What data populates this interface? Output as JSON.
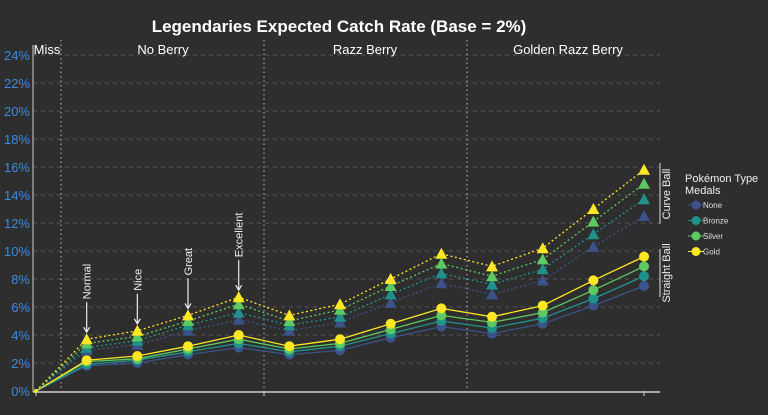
{
  "chart_data": {
    "type": "line",
    "title": "Legendaries Expected Catch Rate (Base = 2%)",
    "xlabel": "",
    "ylabel": "",
    "ylim": [
      0,
      24
    ],
    "yticks": [
      "0%",
      "2%",
      "4%",
      "6%",
      "8%",
      "10%",
      "12%",
      "14%",
      "16%",
      "18%",
      "20%",
      "22%",
      "24%"
    ],
    "grid": true,
    "sections": [
      "Miss",
      "No Berry",
      "Razz Berry",
      "Golden Razz Berry"
    ],
    "throw_annotations": [
      "Normal",
      "Nice",
      "Great",
      "Excellent"
    ],
    "ball_labels": {
      "curve": "Curve Ball",
      "straight": "Straight Ball"
    },
    "legend": {
      "title": "Pokémon Type Medals",
      "placement": "right",
      "entries": [
        {
          "name": "None",
          "color": "#3b528b"
        },
        {
          "name": "Bronze",
          "color": "#21918c"
        },
        {
          "name": "Silver",
          "color": "#5ec962"
        },
        {
          "name": "Gold",
          "color": "#fde725"
        }
      ]
    },
    "x": [
      "Miss",
      "No Berry Normal",
      "No Berry Nice",
      "No Berry Great",
      "No Berry Excellent",
      "Razz Berry Normal",
      "Razz Berry Nice",
      "Razz Berry Great",
      "Razz Berry Excellent",
      "Golden Razz Berry Normal",
      "Golden Razz Berry Nice",
      "Golden Razz Berry Great",
      "Golden Razz Berry Excellent"
    ],
    "series": [
      {
        "medal": "None",
        "ball": "Straight Ball",
        "values": [
          0,
          1.8,
          2.0,
          2.6,
          3.1,
          2.6,
          2.9,
          3.8,
          4.6,
          4.1,
          4.8,
          6.1,
          7.5
        ]
      },
      {
        "medal": "Bronze",
        "ball": "Straight Ball",
        "values": [
          0,
          1.9,
          2.2,
          2.8,
          3.4,
          2.8,
          3.2,
          4.1,
          5.0,
          4.5,
          5.2,
          6.6,
          8.2
        ]
      },
      {
        "medal": "Silver",
        "ball": "Straight Ball",
        "values": [
          0,
          2.1,
          2.3,
          3.0,
          3.7,
          3.0,
          3.4,
          4.4,
          5.4,
          4.9,
          5.6,
          7.2,
          8.9
        ]
      },
      {
        "medal": "Gold",
        "ball": "Straight Ball",
        "values": [
          0,
          2.2,
          2.5,
          3.2,
          4.0,
          3.2,
          3.7,
          4.8,
          5.9,
          5.3,
          6.1,
          7.9,
          9.6
        ]
      },
      {
        "medal": "None",
        "ball": "Curve Ball",
        "values": [
          0,
          2.9,
          3.3,
          4.3,
          5.1,
          4.3,
          4.9,
          6.3,
          7.7,
          6.9,
          7.9,
          10.3,
          12.5
        ]
      },
      {
        "medal": "Bronze",
        "ball": "Curve Ball",
        "values": [
          0,
          3.1,
          3.6,
          4.7,
          5.6,
          4.7,
          5.3,
          6.9,
          8.4,
          7.6,
          8.7,
          11.2,
          13.7
        ]
      },
      {
        "medal": "Silver",
        "ball": "Curve Ball",
        "values": [
          0,
          3.4,
          3.9,
          5.0,
          6.2,
          5.0,
          5.8,
          7.5,
          9.1,
          8.2,
          9.4,
          12.1,
          14.8
        ]
      },
      {
        "medal": "Gold",
        "ball": "Curve Ball",
        "values": [
          0,
          3.7,
          4.3,
          5.4,
          6.7,
          5.4,
          6.2,
          8.0,
          9.8,
          8.9,
          10.2,
          13.0,
          15.8
        ]
      }
    ]
  }
}
